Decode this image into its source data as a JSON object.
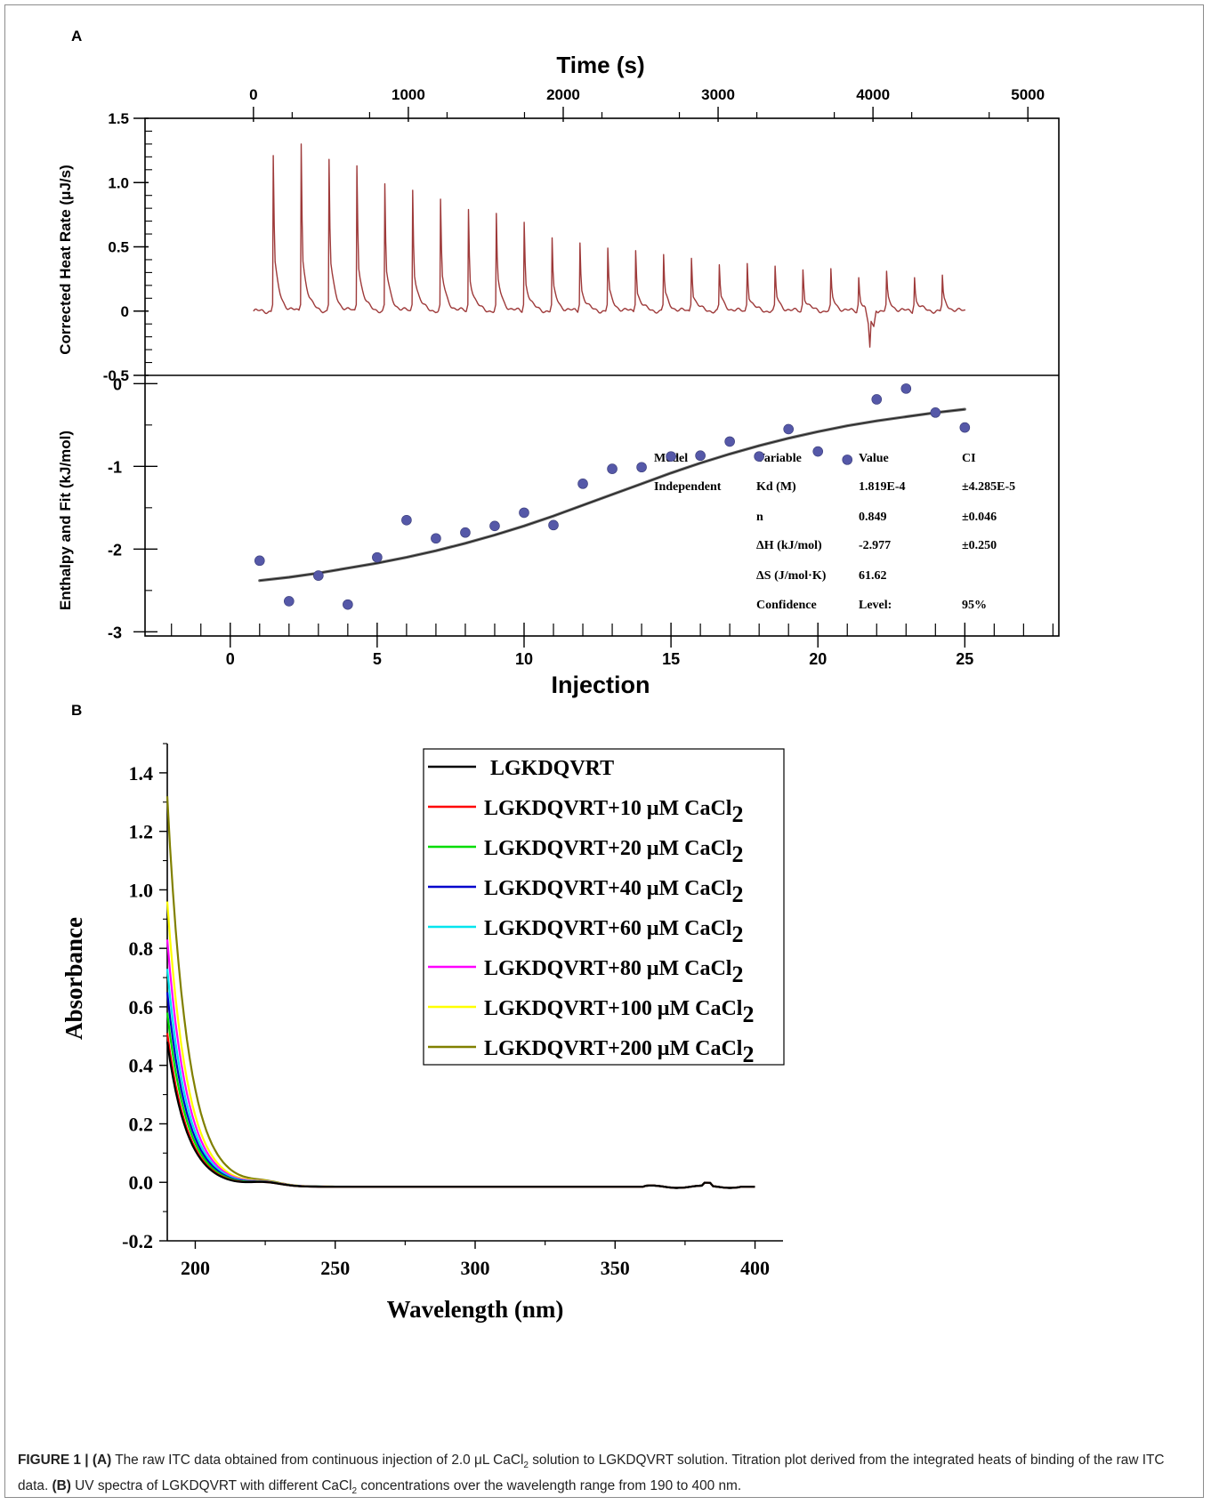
{
  "panels": {
    "a_label": "A",
    "b_label": "B"
  },
  "chart_data": [
    {
      "id": "itc-raw",
      "type": "line",
      "title": "Time (s)",
      "xlabel": "Time (s)",
      "ylabel": "Corrected Heat Rate (μJ/s)",
      "xlim": [
        -700,
        5200
      ],
      "ylim": [
        -0.5,
        1.5
      ],
      "xticks": [
        "0",
        "1000",
        "2000",
        "3000",
        "4000",
        "5000"
      ],
      "yticks": [
        "1.5",
        "1.0",
        "0.5",
        "0",
        "-0.5"
      ],
      "color": "#9e3a3a",
      "start_time": 0,
      "end_time": 4600,
      "baseline": 0.0,
      "peak_times": [
        130,
        310,
        490,
        670,
        850,
        1030,
        1210,
        1390,
        1570,
        1750,
        1930,
        2110,
        2290,
        2470,
        2650,
        2830,
        3010,
        3190,
        3370,
        3550,
        3730,
        3910,
        4090,
        4270,
        4450
      ],
      "peak_heights": [
        1.21,
        1.3,
        1.18,
        1.13,
        0.99,
        0.94,
        0.87,
        0.79,
        0.76,
        0.69,
        0.57,
        0.53,
        0.49,
        0.47,
        0.44,
        0.41,
        0.36,
        0.37,
        0.35,
        0.32,
        0.33,
        0.26,
        0.31,
        0.26,
        0.28
      ],
      "negative_peak": {
        "time": 3980,
        "value": -0.28
      }
    },
    {
      "id": "itc-fit",
      "type": "scatter",
      "xlabel": "Injection",
      "ylabel": "Enthalpy and Fit (kJ/mol)",
      "xlim": [
        -2.9,
        28.2
      ],
      "ylim": [
        -3.05,
        0.1
      ],
      "xticks": [
        "0",
        "5",
        "10",
        "15",
        "20",
        "25"
      ],
      "yticks": [
        "0",
        "-1",
        "-2",
        "-3"
      ],
      "points": [
        {
          "x": 1,
          "y": -2.14
        },
        {
          "x": 2,
          "y": -2.63
        },
        {
          "x": 3,
          "y": -2.32
        },
        {
          "x": 4,
          "y": -2.67
        },
        {
          "x": 5,
          "y": -2.1
        },
        {
          "x": 6,
          "y": -1.65
        },
        {
          "x": 7,
          "y": -1.87
        },
        {
          "x": 8,
          "y": -1.8
        },
        {
          "x": 9,
          "y": -1.72
        },
        {
          "x": 10,
          "y": -1.56
        },
        {
          "x": 11,
          "y": -1.71
        },
        {
          "x": 12,
          "y": -1.21
        },
        {
          "x": 13,
          "y": -1.03
        },
        {
          "x": 14,
          "y": -1.01
        },
        {
          "x": 15,
          "y": -0.88
        },
        {
          "x": 16,
          "y": -0.87
        },
        {
          "x": 17,
          "y": -0.7
        },
        {
          "x": 18,
          "y": -0.88
        },
        {
          "x": 19,
          "y": -0.55
        },
        {
          "x": 20,
          "y": -0.82
        },
        {
          "x": 21,
          "y": -0.92
        },
        {
          "x": 22,
          "y": -0.19
        },
        {
          "x": 23,
          "y": -0.06
        },
        {
          "x": 24,
          "y": -0.35
        },
        {
          "x": 25,
          "y": -0.53
        }
      ],
      "fit": {
        "x": [
          1,
          2,
          3,
          4,
          5,
          6,
          7,
          8,
          9,
          10,
          11,
          12,
          13,
          14,
          15,
          16,
          17,
          18,
          19,
          20,
          21,
          22,
          23,
          24,
          25
        ],
        "y": [
          -2.38,
          -2.34,
          -2.29,
          -2.23,
          -2.17,
          -2.1,
          -2.02,
          -1.93,
          -1.83,
          -1.72,
          -1.6,
          -1.47,
          -1.34,
          -1.21,
          -1.08,
          -0.96,
          -0.85,
          -0.75,
          -0.66,
          -0.58,
          -0.51,
          -0.45,
          -0.4,
          -0.35,
          -0.31
        ]
      },
      "point_color": "#5558a8",
      "table": {
        "headers": [
          "Model",
          "Variable",
          "Value",
          "CI"
        ],
        "rows": [
          [
            "Independent",
            "Kd (M)",
            "1.819E-4",
            "±4.285E-5"
          ],
          [
            "",
            "n",
            "0.849",
            "±0.046"
          ],
          [
            "",
            "ΔH (kJ/mol)",
            "-2.977",
            "±0.250"
          ],
          [
            "",
            "ΔS (J/mol·K)",
            "61.62",
            ""
          ],
          [
            "",
            "Confidence",
            "Level:",
            "95%"
          ]
        ]
      }
    },
    {
      "id": "uv-spectra",
      "type": "line",
      "xlabel": "Wavelength (nm)",
      "ylabel": "Absorbance",
      "xlim": [
        190,
        410
      ],
      "ylim": [
        -0.2,
        1.5
      ],
      "xticks": [
        "200",
        "250",
        "300",
        "350",
        "400"
      ],
      "yticks": [
        "1.4",
        "1.2",
        "1.0",
        "0.8",
        "0.6",
        "0.4",
        "0.2",
        "0.0",
        "-0.2"
      ],
      "x_start": 190,
      "x_end": 400,
      "plateau": -0.015,
      "legend_position": "top-right",
      "series": [
        {
          "name": "LGKDQVRT",
          "color": "#000000",
          "peak": 0.48,
          "legend_name": "LGKDQVRT",
          "legend_sub": ""
        },
        {
          "name": "LGKDQVRT+10 μM CaCl2",
          "color": "#ff0000",
          "peak": 0.51,
          "legend_name": "LGKDQVRT+10 μM CaCl",
          "legend_sub": "2"
        },
        {
          "name": "LGKDQVRT+20 μM CaCl2",
          "color": "#00dd00",
          "peak": 0.58,
          "legend_name": "LGKDQVRT+20 μM CaCl",
          "legend_sub": "2"
        },
        {
          "name": "LGKDQVRT+40 μM CaCl2",
          "color": "#0000cc",
          "peak": 0.65,
          "legend_name": "LGKDQVRT+40 μM CaCl",
          "legend_sub": "2"
        },
        {
          "name": "LGKDQVRT+60 μM CaCl2",
          "color": "#00e5ee",
          "peak": 0.73,
          "legend_name": "LGKDQVRT+60 μM CaCl",
          "legend_sub": "2"
        },
        {
          "name": "LGKDQVRT+80 μM CaCl2",
          "color": "#ff00ff",
          "peak": 0.83,
          "legend_name": "LGKDQVRT+80 μM CaCl",
          "legend_sub": "2"
        },
        {
          "name": "LGKDQVRT+100 μM CaCl2",
          "color": "#ffff00",
          "peak": 0.96,
          "legend_name": "LGKDQVRT+100 μM CaCl",
          "legend_sub": "2"
        },
        {
          "name": "LGKDQVRT+200 μM CaCl2",
          "color": "#808000",
          "peak": 1.32,
          "legend_name": "LGKDQVRT+200 μM CaCl",
          "legend_sub": "2"
        }
      ]
    }
  ],
  "caption": {
    "label": "FIGURE 1 | ",
    "a": "(A)",
    "text1": " The raw ITC data obtained from continuous injection of 2.0 μL CaCl",
    "sub1": "2",
    "text2": " solution to LGKDQVRT solution. Titration plot derived from the integrated heats of binding of the raw ITC data. ",
    "b": "(B)",
    "text3": " UV spectra of LGKDQVRT with different CaCl",
    "sub2": "2",
    "text4": " concentrations over the wavelength range from 190 to 400 nm."
  }
}
